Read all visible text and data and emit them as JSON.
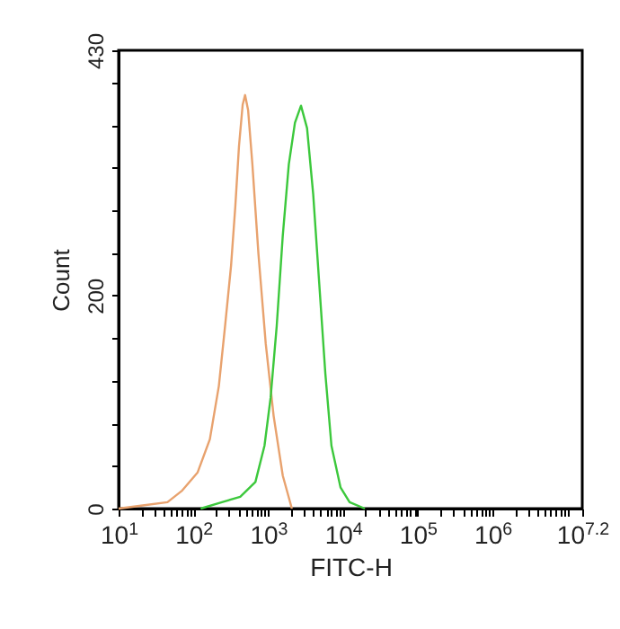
{
  "chart_data": {
    "type": "line",
    "xlabel": "FITC-H",
    "ylabel": "Count",
    "log": "x",
    "grid": false,
    "marker": "none",
    "line_style": "solid",
    "xlim": [
      10,
      15848932
    ],
    "ylim": [
      0,
      430
    ],
    "xticks": [
      {
        "value": 10,
        "label": "10$^{1}$"
      },
      {
        "value": 20,
        "label": null
      },
      {
        "value": 30,
        "label": null
      },
      {
        "value": 40,
        "label": null
      },
      {
        "value": 50,
        "label": null
      },
      {
        "value": 60,
        "label": null
      },
      {
        "value": 70,
        "label": null
      },
      {
        "value": 80,
        "label": null
      },
      {
        "value": 90,
        "label": null
      },
      {
        "value": 100,
        "label": "10$^{2}$"
      },
      {
        "value": 200,
        "label": null
      },
      {
        "value": 300,
        "label": null
      },
      {
        "value": 400,
        "label": null
      },
      {
        "value": 500,
        "label": null
      },
      {
        "value": 600,
        "label": null
      },
      {
        "value": 700,
        "label": null
      },
      {
        "value": 800,
        "label": null
      },
      {
        "value": 900,
        "label": null
      },
      {
        "value": 1000,
        "label": "10$^{3}$"
      },
      {
        "value": 2000,
        "label": null
      },
      {
        "value": 3000,
        "label": null
      },
      {
        "value": 4000,
        "label": null
      },
      {
        "value": 5000,
        "label": null
      },
      {
        "value": 6000,
        "label": null
      },
      {
        "value": 7000,
        "label": null
      },
      {
        "value": 8000,
        "label": null
      },
      {
        "value": 9000,
        "label": null
      },
      {
        "value": 10000,
        "label": "10$^{4}$"
      },
      {
        "value": 20000,
        "label": null
      },
      {
        "value": 30000,
        "label": null
      },
      {
        "value": 40000,
        "label": null
      },
      {
        "value": 50000,
        "label": null
      },
      {
        "value": 60000,
        "label": null
      },
      {
        "value": 70000,
        "label": null
      },
      {
        "value": 80000,
        "label": null
      },
      {
        "value": 90000,
        "label": null
      },
      {
        "value": 100000,
        "label": "10$^{5}$"
      },
      {
        "value": 200000,
        "label": null
      },
      {
        "value": 300000,
        "label": null
      },
      {
        "value": 400000,
        "label": null
      },
      {
        "value": 500000,
        "label": null
      },
      {
        "value": 600000,
        "label": null
      },
      {
        "value": 700000,
        "label": null
      },
      {
        "value": 800000,
        "label": null
      },
      {
        "value": 900000,
        "label": null
      },
      {
        "value": 1000000,
        "label": "10$^{6}$"
      },
      {
        "value": 2000000,
        "label": null
      },
      {
        "value": 3000000,
        "label": null
      },
      {
        "value": 4000000,
        "label": null
      },
      {
        "value": 5000000,
        "label": null
      },
      {
        "value": 6000000,
        "label": null
      },
      {
        "value": 7000000,
        "label": null
      },
      {
        "value": 8000000,
        "label": null
      },
      {
        "value": 9000000,
        "label": null
      },
      {
        "value": 10000000,
        "label": null
      },
      {
        "value": 15848932,
        "label": "10$^{7.2}$"
      }
    ],
    "yticks": [
      0,
      {
        "value": 40,
        "label": null
      },
      {
        "value": 80,
        "label": null
      },
      {
        "value": 120,
        "label": null
      },
      {
        "value": 160,
        "label": null
      },
      200,
      {
        "value": 240,
        "label": null
      },
      {
        "value": 280,
        "label": null
      },
      {
        "value": 320,
        "label": null
      },
      {
        "value": 360,
        "label": null
      },
      {
        "value": 400,
        "label": null
      },
      430
    ],
    "series": [
      {
        "color": "#e8a26e",
        "x": [
          10,
          21,
          45,
          71,
          114,
          166,
          219,
          265,
          319,
          364,
          407,
          456,
          491,
          539,
          615,
          741,
          927,
          1183,
          1567,
          2075
        ],
        "values": [
          0,
          3,
          6,
          17,
          34,
          65,
          115,
          171,
          228,
          284,
          340,
          379,
          388,
          374,
          323,
          239,
          155,
          87,
          31,
          0
        ]
      },
      {
        "color": "#3cc83c",
        "x": [
          125,
          241,
          423,
          675,
          893,
          1078,
          1300,
          1567,
          1888,
          2280,
          2748,
          3311,
          4000,
          4820,
          5810,
          7015,
          9270,
          12270,
          19630
        ],
        "values": [
          0,
          6,
          11,
          25,
          59,
          104,
          171,
          256,
          323,
          362,
          378,
          357,
          295,
          211,
          127,
          59,
          20,
          6,
          0
        ]
      }
    ]
  }
}
